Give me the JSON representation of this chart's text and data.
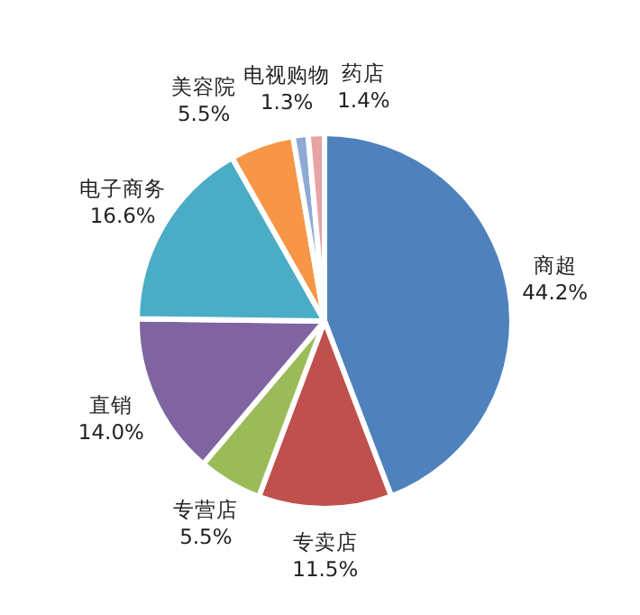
{
  "chart_data": {
    "type": "pie",
    "categories": [
      "商超",
      "专卖店",
      "专营店",
      "直销",
      "电子商务",
      "美容院",
      "电视购物",
      "药店"
    ],
    "values": [
      44.2,
      11.5,
      5.5,
      14.0,
      16.6,
      5.5,
      1.3,
      1.4
    ],
    "value_labels": [
      "44.2%",
      "11.5%",
      "5.5%",
      "14.0%",
      "16.6%",
      "5.5%",
      "1.3%",
      "1.4%"
    ],
    "colors": [
      "#4f81bd",
      "#c0504d",
      "#9bbb59",
      "#8064a2",
      "#4bacc6",
      "#f79646",
      "#8ea9d3",
      "#e8a3a3"
    ],
    "legend": false
  }
}
